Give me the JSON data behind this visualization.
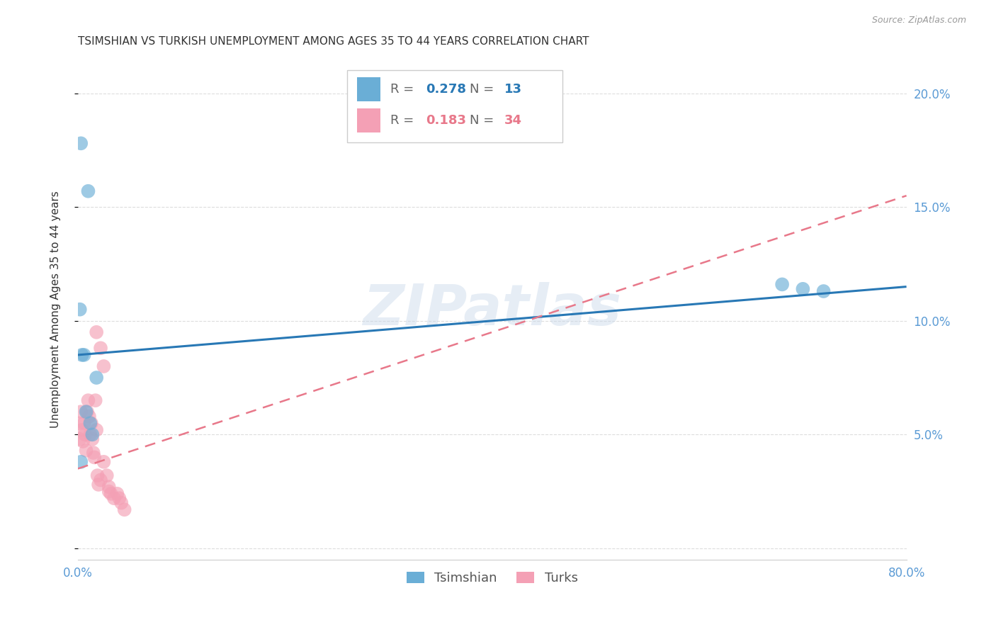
{
  "title": "TSIMSHIAN VS TURKISH UNEMPLOYMENT AMONG AGES 35 TO 44 YEARS CORRELATION CHART",
  "source": "Source: ZipAtlas.com",
  "ylabel": "Unemployment Among Ages 35 to 44 years",
  "xlim": [
    0.0,
    0.8
  ],
  "ylim": [
    -0.005,
    0.215
  ],
  "yticks": [
    0.0,
    0.05,
    0.1,
    0.15,
    0.2
  ],
  "ytick_labels": [
    "",
    "5.0%",
    "10.0%",
    "15.0%",
    "20.0%"
  ],
  "xticks": [
    0.0,
    0.1,
    0.2,
    0.3,
    0.4,
    0.5,
    0.6,
    0.7,
    0.8
  ],
  "xtick_labels": [
    "0.0%",
    "",
    "",
    "",
    "",
    "",
    "",
    "",
    "80.0%"
  ],
  "tsimshian_x": [
    0.003,
    0.01,
    0.002,
    0.004,
    0.006,
    0.008,
    0.012,
    0.014,
    0.018,
    0.003,
    0.68,
    0.7,
    0.72
  ],
  "tsimshian_y": [
    0.178,
    0.157,
    0.105,
    0.085,
    0.085,
    0.06,
    0.055,
    0.05,
    0.075,
    0.038,
    0.116,
    0.114,
    0.113
  ],
  "turks_x": [
    0.001,
    0.002,
    0.003,
    0.004,
    0.005,
    0.006,
    0.007,
    0.008,
    0.009,
    0.01,
    0.011,
    0.012,
    0.013,
    0.014,
    0.015,
    0.016,
    0.017,
    0.018,
    0.019,
    0.02,
    0.022,
    0.025,
    0.028,
    0.03,
    0.032,
    0.035,
    0.038,
    0.04,
    0.042,
    0.045,
    0.018,
    0.022,
    0.025,
    0.03
  ],
  "turks_y": [
    0.055,
    0.048,
    0.06,
    0.052,
    0.047,
    0.055,
    0.05,
    0.043,
    0.06,
    0.065,
    0.058,
    0.05,
    0.055,
    0.048,
    0.042,
    0.04,
    0.065,
    0.052,
    0.032,
    0.028,
    0.03,
    0.038,
    0.032,
    0.027,
    0.024,
    0.022,
    0.024,
    0.022,
    0.02,
    0.017,
    0.095,
    0.088,
    0.08,
    0.025
  ],
  "tsimshian_color": "#6aaed6",
  "turks_color": "#f4a0b5",
  "tsimshian_line_color": "#2878b5",
  "turks_line_color": "#e8788a",
  "legend_R_tsimshian": "0.278",
  "legend_N_tsimshian": "13",
  "legend_R_turks": "0.183",
  "legend_N_turks": "34",
  "watermark": "ZIPatlas",
  "background_color": "#ffffff",
  "grid_color": "#dddddd",
  "axis_color": "#5b9bd5",
  "title_fontsize": 11,
  "label_fontsize": 11,
  "tick_fontsize": 12
}
